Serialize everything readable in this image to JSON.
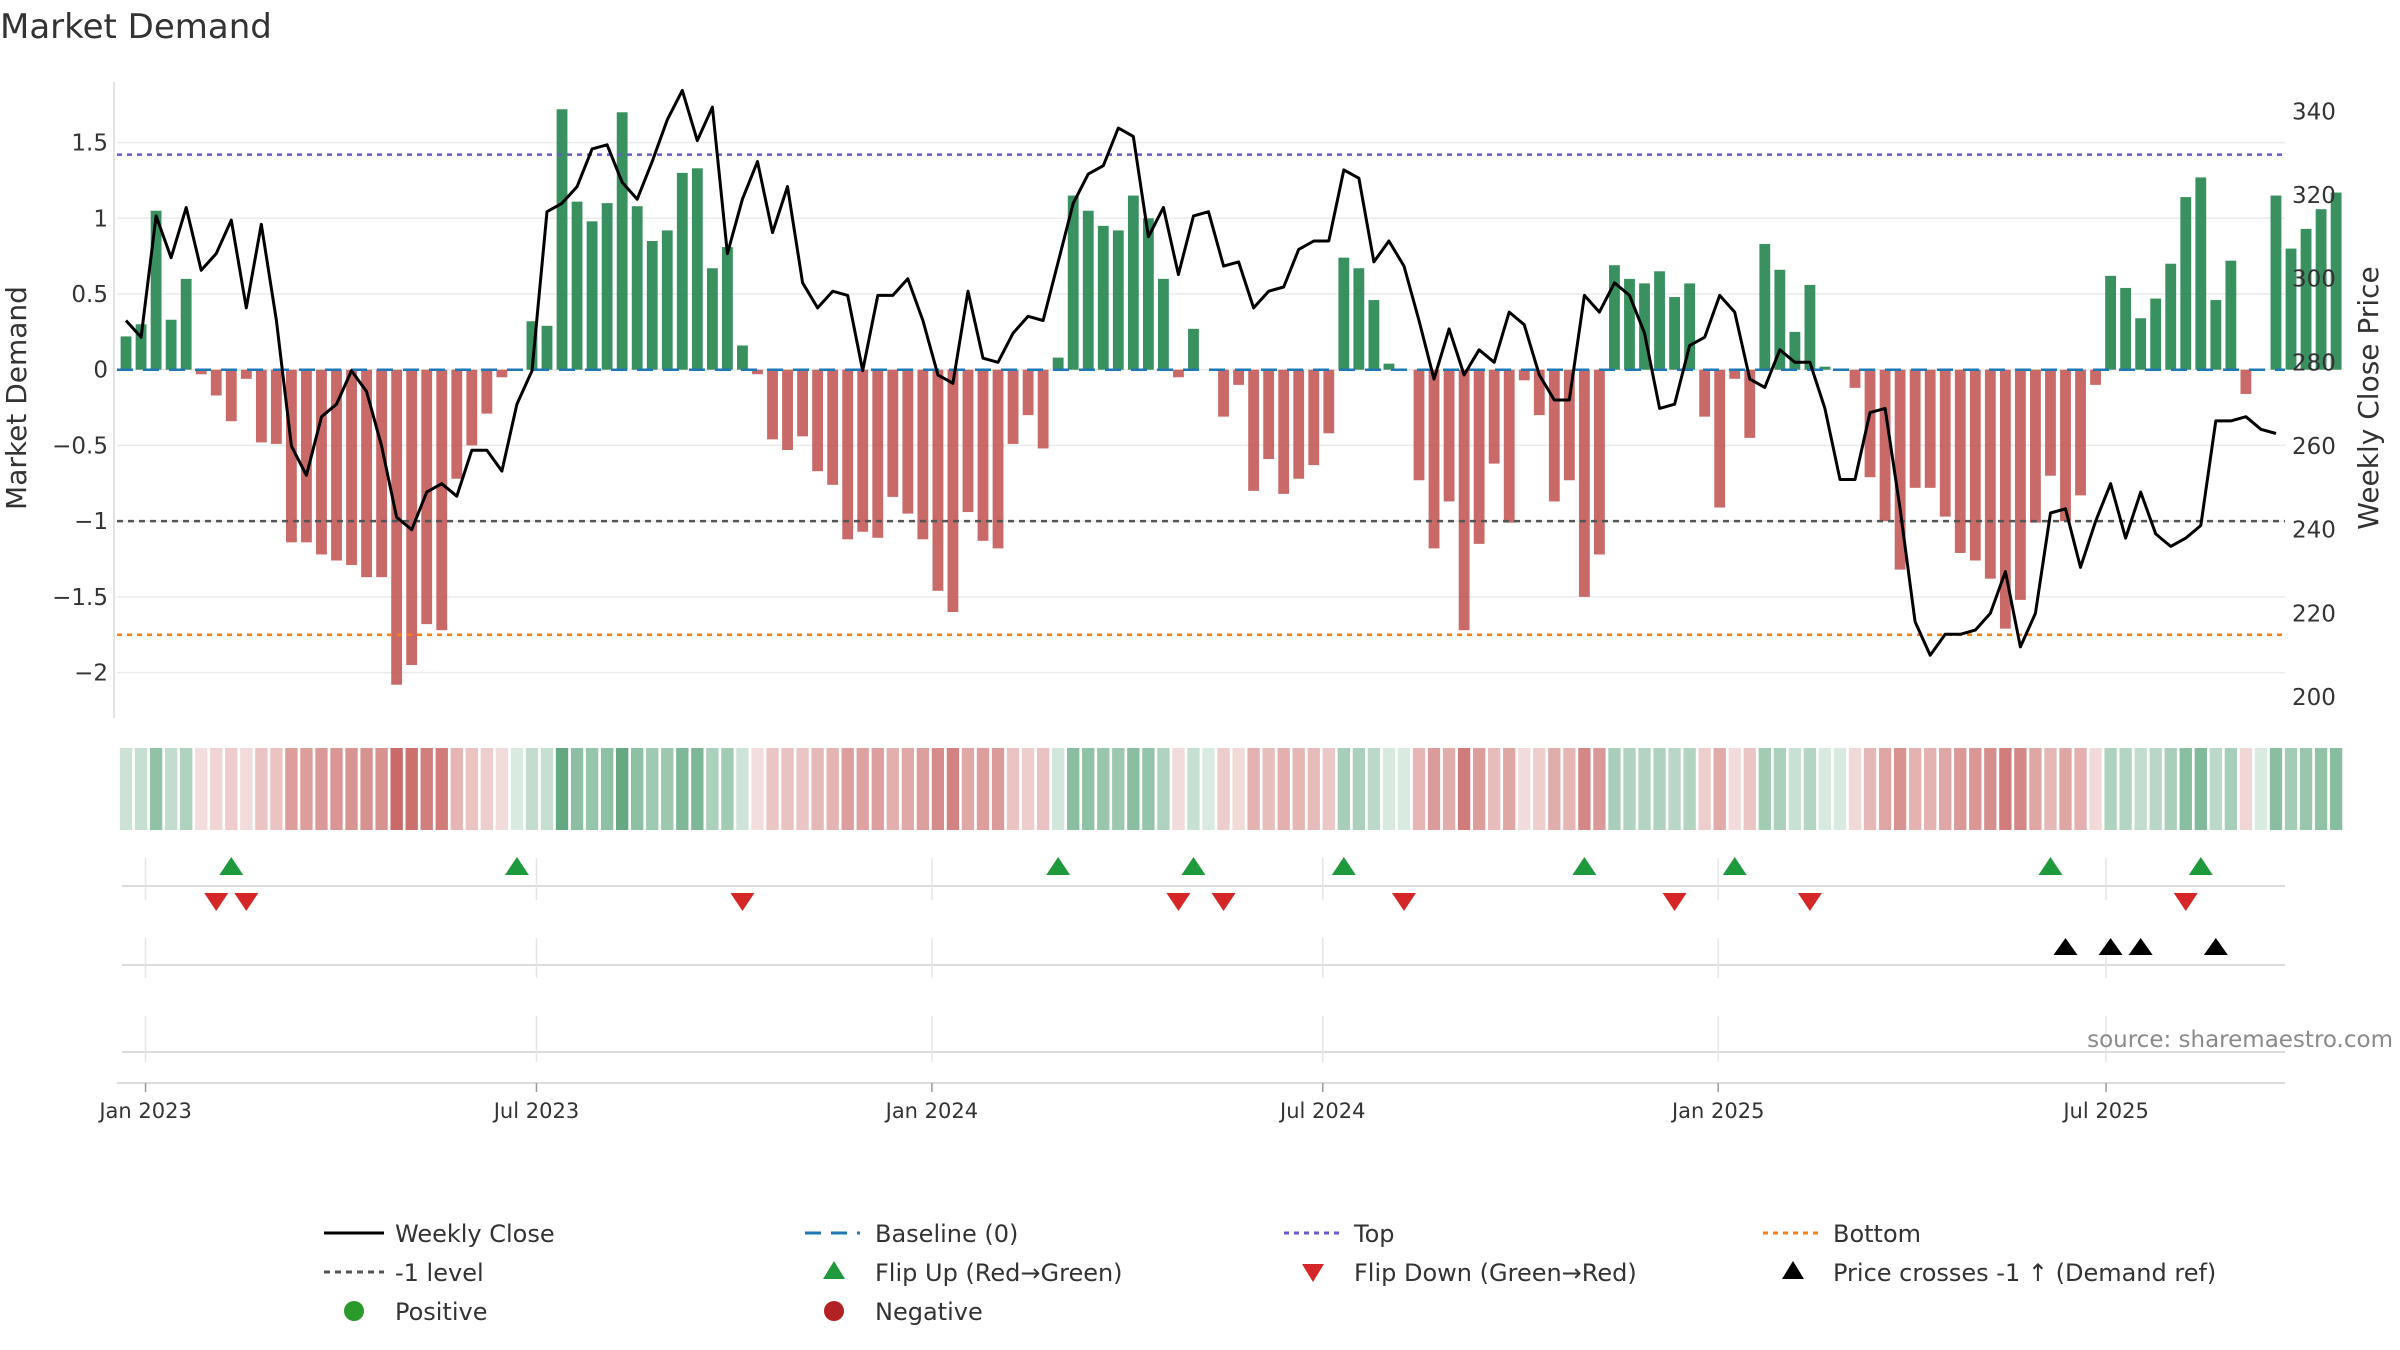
{
  "chart_data": {
    "type": "bar",
    "title": "Market Demand",
    "ylabel": "Market Demand",
    "y2label": "Weekly Close Price",
    "ylim": [
      -2.3,
      1.9
    ],
    "y2lim": [
      195,
      347
    ],
    "yticks": [
      1.5,
      1,
      0.5,
      0,
      -0.5,
      -1,
      -1.5,
      -2
    ],
    "ytick_labels": [
      "1.5",
      "1",
      "0.5",
      "0",
      "−0.5",
      "−1",
      "−1.5",
      "−2"
    ],
    "y2ticks": [
      340,
      320,
      300,
      280,
      260,
      240,
      220,
      200
    ],
    "start_date": "2022-12-23",
    "xlim_weeks": [
      -0.6,
      143.6
    ],
    "date_ticks": [
      {
        "label": "Jan 2023",
        "week": 1.3
      },
      {
        "label": "Jul 2023",
        "week": 27.3
      },
      {
        "label": "Jan 2024",
        "week": 53.6
      },
      {
        "label": "Jul 2024",
        "week": 79.6
      },
      {
        "label": "Jan 2025",
        "week": 105.9
      },
      {
        "label": "Jul 2025",
        "week": 131.7
      }
    ],
    "reference_lines": {
      "baseline": 0,
      "top": 1.42,
      "level": -1.0,
      "bottom": -1.75
    },
    "demand": [
      0.22,
      0.3,
      1.05,
      0.33,
      0.6,
      -0.03,
      -0.17,
      -0.34,
      -0.06,
      -0.48,
      -0.49,
      -1.14,
      -1.14,
      -1.22,
      -1.26,
      -1.29,
      -1.37,
      -1.37,
      -2.08,
      -1.95,
      -1.68,
      -1.72,
      -0.72,
      -0.5,
      -0.29,
      -0.05,
      0.0,
      0.32,
      0.29,
      1.72,
      1.11,
      0.98,
      1.1,
      1.7,
      1.08,
      0.85,
      0.92,
      1.3,
      1.33,
      0.67,
      0.81,
      0.16,
      -0.03,
      -0.46,
      -0.53,
      -0.44,
      -0.67,
      -0.76,
      -1.12,
      -1.07,
      -1.11,
      -0.84,
      -0.95,
      -1.12,
      -1.46,
      -1.6,
      -0.94,
      -1.13,
      -1.18,
      -0.49,
      -0.3,
      -0.52,
      0.08,
      1.15,
      1.05,
      0.95,
      0.92,
      1.15,
      1.0,
      0.6,
      -0.05,
      0.27,
      0.0,
      -0.31,
      -0.1,
      -0.8,
      -0.59,
      -0.82,
      -0.72,
      -0.63,
      -0.42,
      0.74,
      0.67,
      0.46,
      0.04,
      0.0,
      -0.73,
      -1.18,
      -0.87,
      -1.72,
      -1.15,
      -0.62,
      -1.01,
      -0.07,
      -0.3,
      -0.87,
      -0.73,
      -1.5,
      -1.22,
      0.69,
      0.6,
      0.57,
      0.65,
      0.48,
      0.57,
      -0.31,
      -0.91,
      -0.06,
      -0.45,
      0.83,
      0.66,
      0.25,
      0.56,
      0.02,
      0.0,
      -0.12,
      -0.71,
      -1.0,
      -1.32,
      -0.78,
      -0.78,
      -0.97,
      -1.21,
      -1.26,
      -1.38,
      -1.71,
      -1.52,
      -1.01,
      -0.7,
      -1.0,
      -0.83,
      -0.1,
      0.62,
      0.54,
      0.34,
      0.47,
      0.7,
      1.14,
      1.27,
      0.46,
      0.72,
      -0.16,
      0.0,
      1.15,
      0.8,
      0.93,
      1.06,
      1.17
    ],
    "price": [
      290,
      286,
      315,
      305,
      317,
      302,
      306,
      314,
      293,
      313,
      290,
      260,
      253,
      267,
      270,
      278,
      273,
      260,
      243,
      240,
      249,
      251,
      248,
      259,
      259,
      254,
      270,
      278,
      316,
      318,
      322,
      331,
      332,
      323,
      319,
      328,
      338,
      345,
      333,
      341,
      306,
      319,
      328,
      311,
      322,
      299,
      293,
      297,
      296,
      278,
      296,
      296,
      300,
      290,
      277,
      275,
      297,
      281,
      280,
      287,
      291,
      290,
      304,
      318,
      325,
      327,
      336,
      334,
      310,
      317,
      301,
      315,
      316,
      303,
      304,
      293,
      297,
      298,
      307,
      309,
      309,
      326,
      324,
      304,
      309,
      303,
      290,
      276,
      288,
      277,
      283,
      280,
      292,
      289,
      277,
      271,
      271,
      296,
      292,
      299,
      296,
      287,
      269,
      270,
      284,
      286,
      296,
      292,
      276,
      274,
      283,
      280,
      280,
      269,
      252,
      252,
      268,
      269,
      245,
      218,
      210,
      215,
      215,
      216,
      220,
      230,
      212,
      220,
      244,
      245,
      231,
      242,
      251,
      238,
      249,
      239,
      236,
      238,
      241,
      266,
      266,
      267,
      264,
      263
    ]
  },
  "strip": {
    "positive_color": "#2e8b57",
    "negative_color": "#c0504d"
  },
  "events": {
    "flip_up_weeks": [
      7,
      26,
      62,
      71,
      81,
      97,
      107,
      128,
      138
    ],
    "flip_down_weeks": [
      6,
      8,
      41,
      70,
      73,
      85,
      103,
      112,
      137
    ],
    "price_cross_weeks": [
      129,
      132,
      134,
      139
    ]
  },
  "source": "source: sharemaestro.com",
  "legend": {
    "weekly_close": "Weekly Close",
    "baseline": "Baseline (0)",
    "top": "Top",
    "bottom": "Bottom",
    "level": "-1 level",
    "flip_up": "Flip Up (Red→Green)",
    "flip_down": "Flip Down (Green→Red)",
    "price_cross": "Price crosses -1 ↑ (Demand ref)",
    "positive": "Positive",
    "negative": "Negative"
  },
  "colors": {
    "positive": "#2e8b57",
    "negative": "#c0504d",
    "price_line": "#000000",
    "baseline": "#1f77b4",
    "top": "#6a5acd",
    "bottom": "#ff7f0e",
    "level": "#555555",
    "flip_up": "#1e9a3c",
    "flip_down": "#d62728",
    "price_cross": "#000000",
    "legend_positive": "#2a9a2a",
    "legend_negative": "#b22222"
  }
}
